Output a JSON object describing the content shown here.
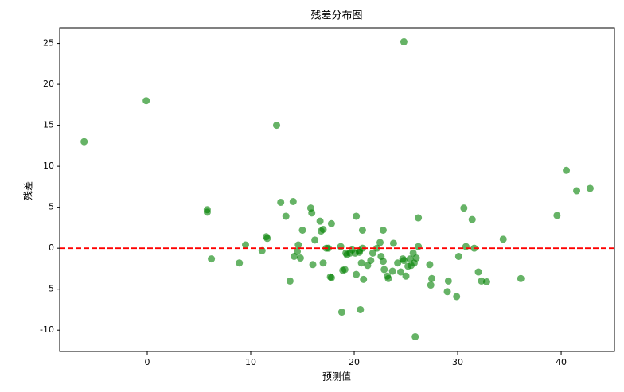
{
  "chart_data": {
    "type": "scatter",
    "title": "残差分布图",
    "xlabel": "预测值",
    "ylabel": "残差",
    "x": [
      -6.1,
      -0.1,
      24.8,
      12.5,
      5.8,
      5.8,
      6.2,
      8.9,
      9.5,
      11.1,
      11.5,
      11.6,
      12.9,
      13.4,
      14.1,
      13.8,
      14.2,
      14.5,
      14.6,
      14.8,
      15.0,
      15.8,
      15.9,
      16.0,
      16.2,
      16.7,
      16.8,
      17.0,
      17.0,
      17.3,
      17.5,
      17.7,
      17.8,
      17.8,
      18.7,
      18.8,
      18.9,
      19.1,
      19.2,
      19.3,
      19.6,
      19.8,
      20.1,
      20.2,
      20.2,
      20.5,
      20.5,
      20.6,
      20.7,
      20.8,
      20.8,
      20.9,
      21.3,
      21.6,
      21.8,
      22.2,
      22.5,
      22.6,
      22.8,
      22.8,
      22.9,
      23.2,
      23.3,
      23.7,
      23.8,
      24.2,
      24.5,
      24.7,
      24.8,
      25.0,
      25.2,
      25.4,
      25.5,
      25.7,
      25.8,
      26.0,
      26.2,
      26.2,
      25.9,
      27.3,
      27.4,
      27.5,
      29.0,
      29.1,
      29.9,
      30.1,
      30.6,
      30.8,
      31.4,
      31.6,
      32.0,
      32.3,
      32.8,
      34.4,
      36.1,
      39.6,
      40.5,
      41.5,
      42.8
    ],
    "y": [
      13.0,
      18.0,
      25.2,
      15.0,
      4.7,
      4.4,
      -1.3,
      -1.8,
      0.4,
      -0.3,
      1.4,
      1.2,
      5.6,
      3.9,
      5.7,
      -4.0,
      -1.0,
      -0.4,
      0.4,
      -1.2,
      2.2,
      4.9,
      4.3,
      -2.0,
      1.0,
      3.3,
      2.1,
      2.3,
      -1.8,
      0.0,
      0.0,
      -3.5,
      -3.6,
      3.0,
      0.2,
      -7.8,
      -2.7,
      -2.6,
      -0.6,
      -0.8,
      -0.6,
      -0.2,
      -0.6,
      3.9,
      -3.2,
      -0.5,
      -0.3,
      -7.5,
      -1.8,
      2.2,
      0.0,
      -3.8,
      -2.1,
      -1.5,
      -0.6,
      0.0,
      0.7,
      -1.0,
      -1.6,
      2.2,
      -2.6,
      -3.4,
      -3.7,
      -2.8,
      0.6,
      -1.8,
      -2.9,
      -1.3,
      -1.5,
      -3.4,
      -2.2,
      -1.3,
      -2.1,
      -0.6,
      -1.8,
      -1.2,
      0.2,
      3.7,
      -10.8,
      -2.0,
      -4.5,
      -3.7,
      -5.3,
      -4.0,
      -5.9,
      -1.0,
      4.9,
      0.2,
      3.5,
      0.0,
      -2.9,
      -4.0,
      -4.1,
      1.1,
      -3.7,
      4.0,
      9.5,
      7.0,
      7.3
    ],
    "color": "green",
    "opacity": 0.6,
    "hline": 0,
    "hline_color": "red",
    "xlim": [
      -8.46,
      45.15
    ],
    "ylim": [
      -12.6,
      26.9
    ],
    "xticks": [
      0,
      10,
      20,
      30,
      40
    ],
    "yticks": [
      -10,
      -5,
      0,
      5,
      10,
      15,
      20,
      25
    ]
  }
}
